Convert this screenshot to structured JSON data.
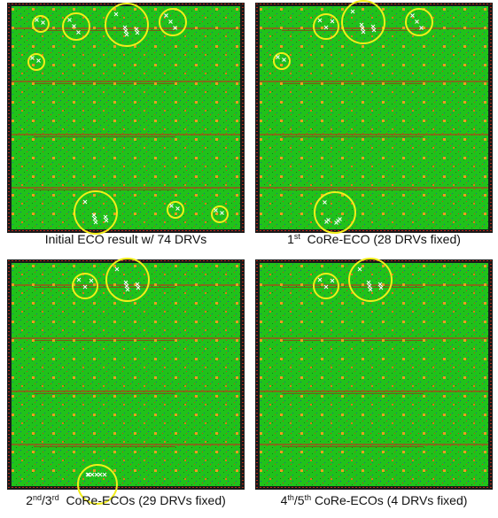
{
  "panels": [
    {
      "caption": [
        {
          "text": "Initial ECO result w/ 74 DRVs"
        }
      ]
    },
    {
      "caption": [
        {
          "text": "1"
        },
        {
          "text": "st",
          "sup": true
        },
        {
          "text": "  CoRe-ECO (28 DRVs fixed)"
        }
      ]
    },
    {
      "caption": [
        {
          "text": "2"
        },
        {
          "text": "nd",
          "sup": true
        },
        {
          "text": "/3"
        },
        {
          "text": "rd",
          "sup": true
        },
        {
          "text": "  CoRe-ECOs (29 DRVs fixed)"
        }
      ]
    },
    {
      "caption": [
        {
          "text": "4"
        },
        {
          "text": "th",
          "sup": true
        },
        {
          "text": "/5"
        },
        {
          "text": "th",
          "sup": true
        },
        {
          "text": " CoRe-ECOs (4 DRVs fixed)"
        }
      ]
    }
  ]
}
